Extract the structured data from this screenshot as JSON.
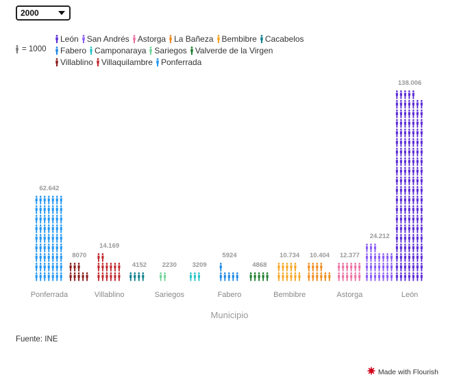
{
  "year_select": {
    "value": "2000",
    "options_visible": [
      "2000"
    ]
  },
  "legend": {
    "unit_label": "= 1000",
    "unit_color": "#777777",
    "rows": [
      [
        0,
        1,
        2,
        3,
        4,
        5
      ],
      [
        6,
        7,
        8,
        9
      ],
      [
        10,
        11,
        12
      ]
    ]
  },
  "chart_data": {
    "type": "bar",
    "subtype": "pictogram",
    "unit_per_icon": 1000,
    "xlabel": "Municipio",
    "ylabel": "",
    "categories": [
      "Ponferrada",
      "Villablino",
      "Villaquilambre",
      "Cacabelos",
      "Sariegos",
      "Camponaraya",
      "Fabero",
      "Valverde de la Virgen",
      "Bembibre",
      "La Bañeza",
      "Astorga",
      "San Andrés",
      "León"
    ],
    "x_tick_labels": [
      "Ponferrada",
      "",
      "Villablino",
      "",
      "Sariegos",
      "",
      "Fabero",
      "",
      "Bembibre",
      "",
      "Astorga",
      "",
      "León"
    ],
    "values": [
      62642,
      8070,
      14169,
      4152,
      2230,
      3209,
      5924,
      4868,
      10734,
      10404,
      12377,
      24212,
      138006
    ],
    "value_labels": [
      "62.642",
      "8070",
      "14.169",
      "4152",
      "2230",
      "3209",
      "5924",
      "4868",
      "10.734",
      "10.404",
      "12.377",
      "24.212",
      "138.006"
    ],
    "colors": [
      "#2196f3",
      "#8b1a1a",
      "#c0272d",
      "#0d7d8a",
      "#6fd39a",
      "#29c4c9",
      "#1e88e5",
      "#1e7d2e",
      "#f5a623",
      "#f08a1c",
      "#ec6fa0",
      "#8b5cf6",
      "#5b2bd6"
    ],
    "series_legend": [
      {
        "name": "León",
        "color": "#5b2bd6"
      },
      {
        "name": "San Andrés",
        "color": "#8b5cf6"
      },
      {
        "name": "Astorga",
        "color": "#ec6fa0"
      },
      {
        "name": "La Bañeza",
        "color": "#f08a1c"
      },
      {
        "name": "Bembibre",
        "color": "#f5a623"
      },
      {
        "name": "Cacabelos",
        "color": "#0d7d8a"
      },
      {
        "name": "Fabero",
        "color": "#1e88e5"
      },
      {
        "name": "Camponaraya",
        "color": "#29c4c9"
      },
      {
        "name": "Sariegos",
        "color": "#6fd39a"
      },
      {
        "name": "Valverde de la Virgen",
        "color": "#1e7d2e"
      },
      {
        "name": "Villablino",
        "color": "#8b1a1a"
      },
      {
        "name": "Villaquilambre",
        "color": "#c0272d"
      },
      {
        "name": "Ponferrada",
        "color": "#2196f3"
      }
    ],
    "grid": false,
    "legend_position": "top-left"
  },
  "footer": {
    "source": "Fuente: INE",
    "flourish": "Made with Flourish",
    "flourish_color": "#d0021b"
  }
}
